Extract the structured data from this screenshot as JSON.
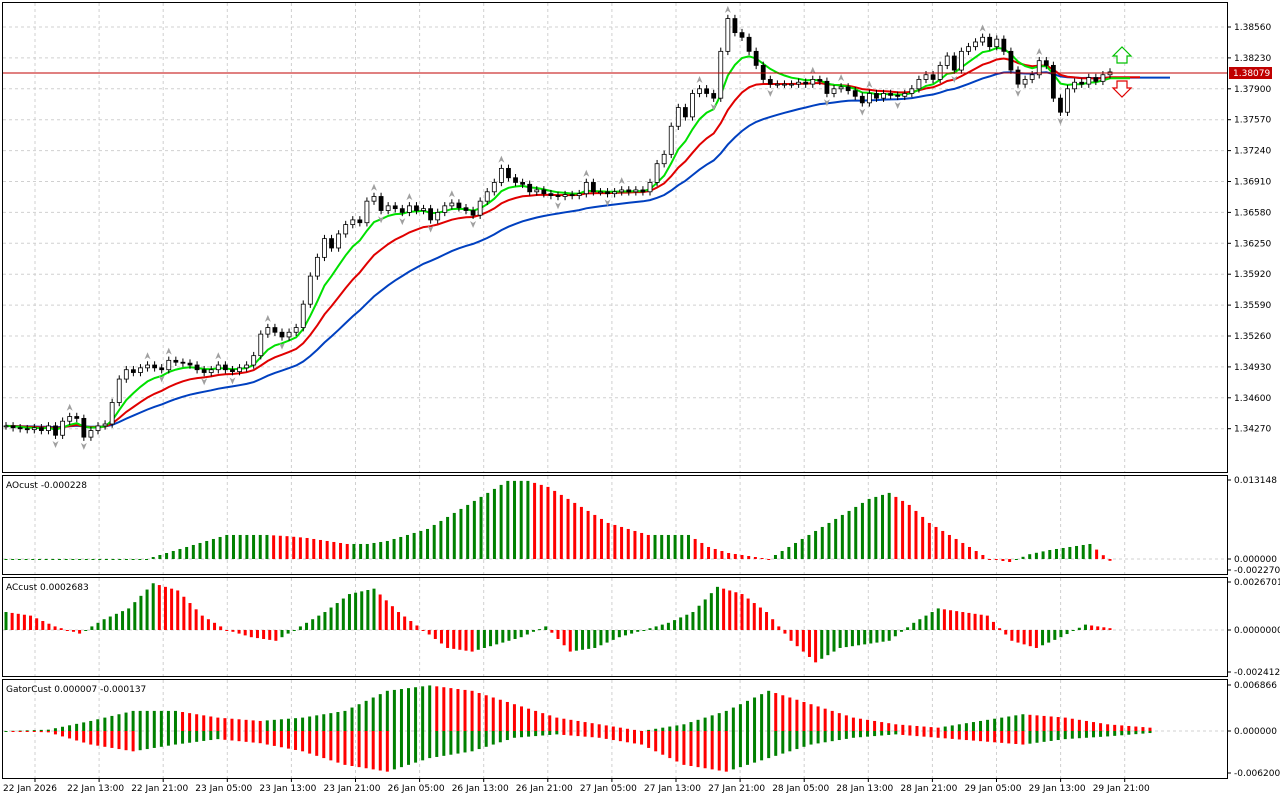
{
  "colors": {
    "up": "#008000",
    "down": "#ff0000",
    "ema_fast": "#00e000",
    "ema_mid": "#e00000",
    "ema_slow": "#0040c0",
    "price_line": "#c00000",
    "grid": "#d0d0d0",
    "fractal": "#a0a0a0"
  },
  "main": {
    "y_ticks": [
      "1.38560",
      "1.38230",
      "1.37900",
      "1.37570",
      "1.37240",
      "1.36910",
      "1.36580",
      "1.36250",
      "1.35920",
      "1.35590",
      "1.35260",
      "1.34930",
      "1.34600",
      "1.34270"
    ],
    "current_price": "1.38079",
    "arrow_up_icon": "arrow-up-outline-icon",
    "arrow_down_icon": "arrow-down-outline-icon"
  },
  "x_ticks": [
    "22 Jan 2026",
    "22 Jan 13:00",
    "22 Jan 21:00",
    "23 Jan 05:00",
    "23 Jan 13:00",
    "23 Jan 21:00",
    "26 Jan 05:00",
    "26 Jan 13:00",
    "26 Jan 21:00",
    "27 Jan 05:00",
    "27 Jan 13:00",
    "27 Jan 21:00",
    "28 Jan 05:00",
    "28 Jan 13:00",
    "28 Jan 21:00",
    "29 Jan 05:00",
    "29 Jan 13:00",
    "29 Jan 21:00"
  ],
  "panels": [
    {
      "name": "AOcust",
      "label": "AOcust -0.000228",
      "ticks": [
        "0.013148",
        "0.000000",
        "-0.002270"
      ]
    },
    {
      "name": "ACcust",
      "label": "ACcust 0.0002683",
      "ticks": [
        "0.0026701",
        "0.0000000",
        "-0.0024127"
      ]
    },
    {
      "name": "GatorCust",
      "label": "GatorCust 0.000007 -0.000137",
      "ticks": [
        "0.006866",
        "0.000000",
        "-0.006200"
      ]
    }
  ],
  "chart_data": {
    "type": "candlestick",
    "price_range": [
      1.341,
      1.3885
    ],
    "closes": [
      1.343,
      1.3428,
      1.3427,
      1.3426,
      1.3428,
      1.3425,
      1.343,
      1.342,
      1.3435,
      1.344,
      1.3438,
      1.3418,
      1.3425,
      1.343,
      1.3432,
      1.3455,
      1.348,
      1.349,
      1.3487,
      1.3492,
      1.3495,
      1.3492,
      1.349,
      1.35,
      1.3498,
      1.3497,
      1.3495,
      1.349,
      1.3487,
      1.349,
      1.3495,
      1.349,
      1.3488,
      1.3492,
      1.3495,
      1.3505,
      1.3528,
      1.3535,
      1.353,
      1.3525,
      1.353,
      1.3535,
      1.356,
      1.359,
      1.361,
      1.363,
      1.362,
      1.3635,
      1.3645,
      1.365,
      1.3647,
      1.367,
      1.3675,
      1.366,
      1.3665,
      1.3662,
      1.3658,
      1.3665,
      1.366,
      1.3662,
      1.365,
      1.3658,
      1.3665,
      1.3668,
      1.3663,
      1.366,
      1.3655,
      1.367,
      1.368,
      1.369,
      1.3705,
      1.3695,
      1.369,
      1.3688,
      1.368,
      1.3682,
      1.3678,
      1.3676,
      1.3675,
      1.3677,
      1.3676,
      1.3678,
      1.369,
      1.368,
      1.368,
      1.3678,
      1.368,
      1.3682,
      1.368,
      1.3682,
      1.368,
      1.369,
      1.371,
      1.372,
      1.375,
      1.377,
      1.376,
      1.3785,
      1.379,
      1.3785,
      1.378,
      1.383,
      1.3865,
      1.385,
      1.3845,
      1.383,
      1.3815,
      1.38,
      1.3795,
      1.3795,
      1.3795,
      1.3795,
      1.3797,
      1.3795,
      1.38,
      1.3798,
      1.3785,
      1.379,
      1.3792,
      1.3788,
      1.3782,
      1.3775,
      1.3785,
      1.378,
      1.3785,
      1.3783,
      1.3782,
      1.3785,
      1.379,
      1.38,
      1.3805,
      1.38,
      1.3815,
      1.3825,
      1.381,
      1.383,
      1.3835,
      1.384,
      1.3845,
      1.3835,
      1.3843,
      1.383,
      1.381,
      1.3795,
      1.38,
      1.3805,
      1.382,
      1.3815,
      1.378,
      1.3765,
      1.379,
      1.3797,
      1.3795,
      1.3802,
      1.3798,
      1.3805,
      1.3808
    ],
    "ema_fast": [
      1.3428,
      1.38,
      1.3797,
      1.381
    ],
    "panel_values": {
      "ao": [
        0,
        0,
        0,
        0,
        0,
        0,
        0,
        0,
        0.001,
        0.002,
        0.003,
        0.004,
        0.004,
        0.004,
        0.0038,
        0.0035,
        0.003,
        0.0025,
        0.0025,
        0.003,
        0.004,
        0.005,
        0.007,
        0.009,
        0.011,
        0.013,
        0.013,
        0.012,
        0.01,
        0.008,
        0.006,
        0.005,
        0.004,
        0.004,
        0.004,
        0.002,
        0.001,
        0.0005,
        0,
        0.002,
        0.004,
        0.006,
        0.008,
        0.01,
        0.011,
        0.009,
        0.006,
        0.004,
        0.002,
        0,
        -0.0005,
        0.0008,
        0.0015,
        0.002,
        0.0025,
        -0.0003
      ],
      "ac": [
        0.001,
        0.0008,
        0.0002,
        -0.0002,
        0.0006,
        0.0012,
        0.0026,
        0.0022,
        0.0008,
        0,
        -0.0004,
        -0.0006,
        0.0002,
        0.001,
        0.002,
        0.0023,
        0.001,
        0,
        -0.001,
        -0.0012,
        -0.0008,
        -0.0004,
        0.0002,
        -0.0012,
        -0.001,
        -0.0004,
        0,
        0.0004,
        0.001,
        0.0024,
        0.002,
        0.001,
        -0.0006,
        -0.0018,
        -0.001,
        -0.0008,
        -0.0006,
        0.0004,
        0.0012,
        0.001,
        0.0008,
        -0.0006,
        -0.001,
        -0.0004,
        0.0003,
        0.0001
      ],
      "gator_up": [
        0,
        0.0002,
        0.0015,
        0.003,
        0.003,
        0.002,
        0.0015,
        0.002,
        0.003,
        0.006,
        0.0068,
        0.006,
        0.004,
        0.002,
        0.001,
        0,
        0.001,
        0.003,
        0.006,
        0.004,
        0.002,
        0.001,
        0.0005,
        0.0015,
        0.0025,
        0.002,
        0.001,
        0.0005
      ],
      "gator_down": [
        0,
        -0.0002,
        -0.002,
        -0.003,
        -0.002,
        -0.0012,
        -0.0018,
        -0.003,
        -0.005,
        -0.006,
        -0.004,
        -0.003,
        -0.001,
        -0.0005,
        -0.001,
        -0.002,
        -0.005,
        -0.006,
        -0.004,
        -0.002,
        -0.001,
        -0.0005,
        -0.001,
        -0.0015,
        -0.002,
        -0.0012,
        -0.0008,
        -0.0003
      ]
    }
  }
}
